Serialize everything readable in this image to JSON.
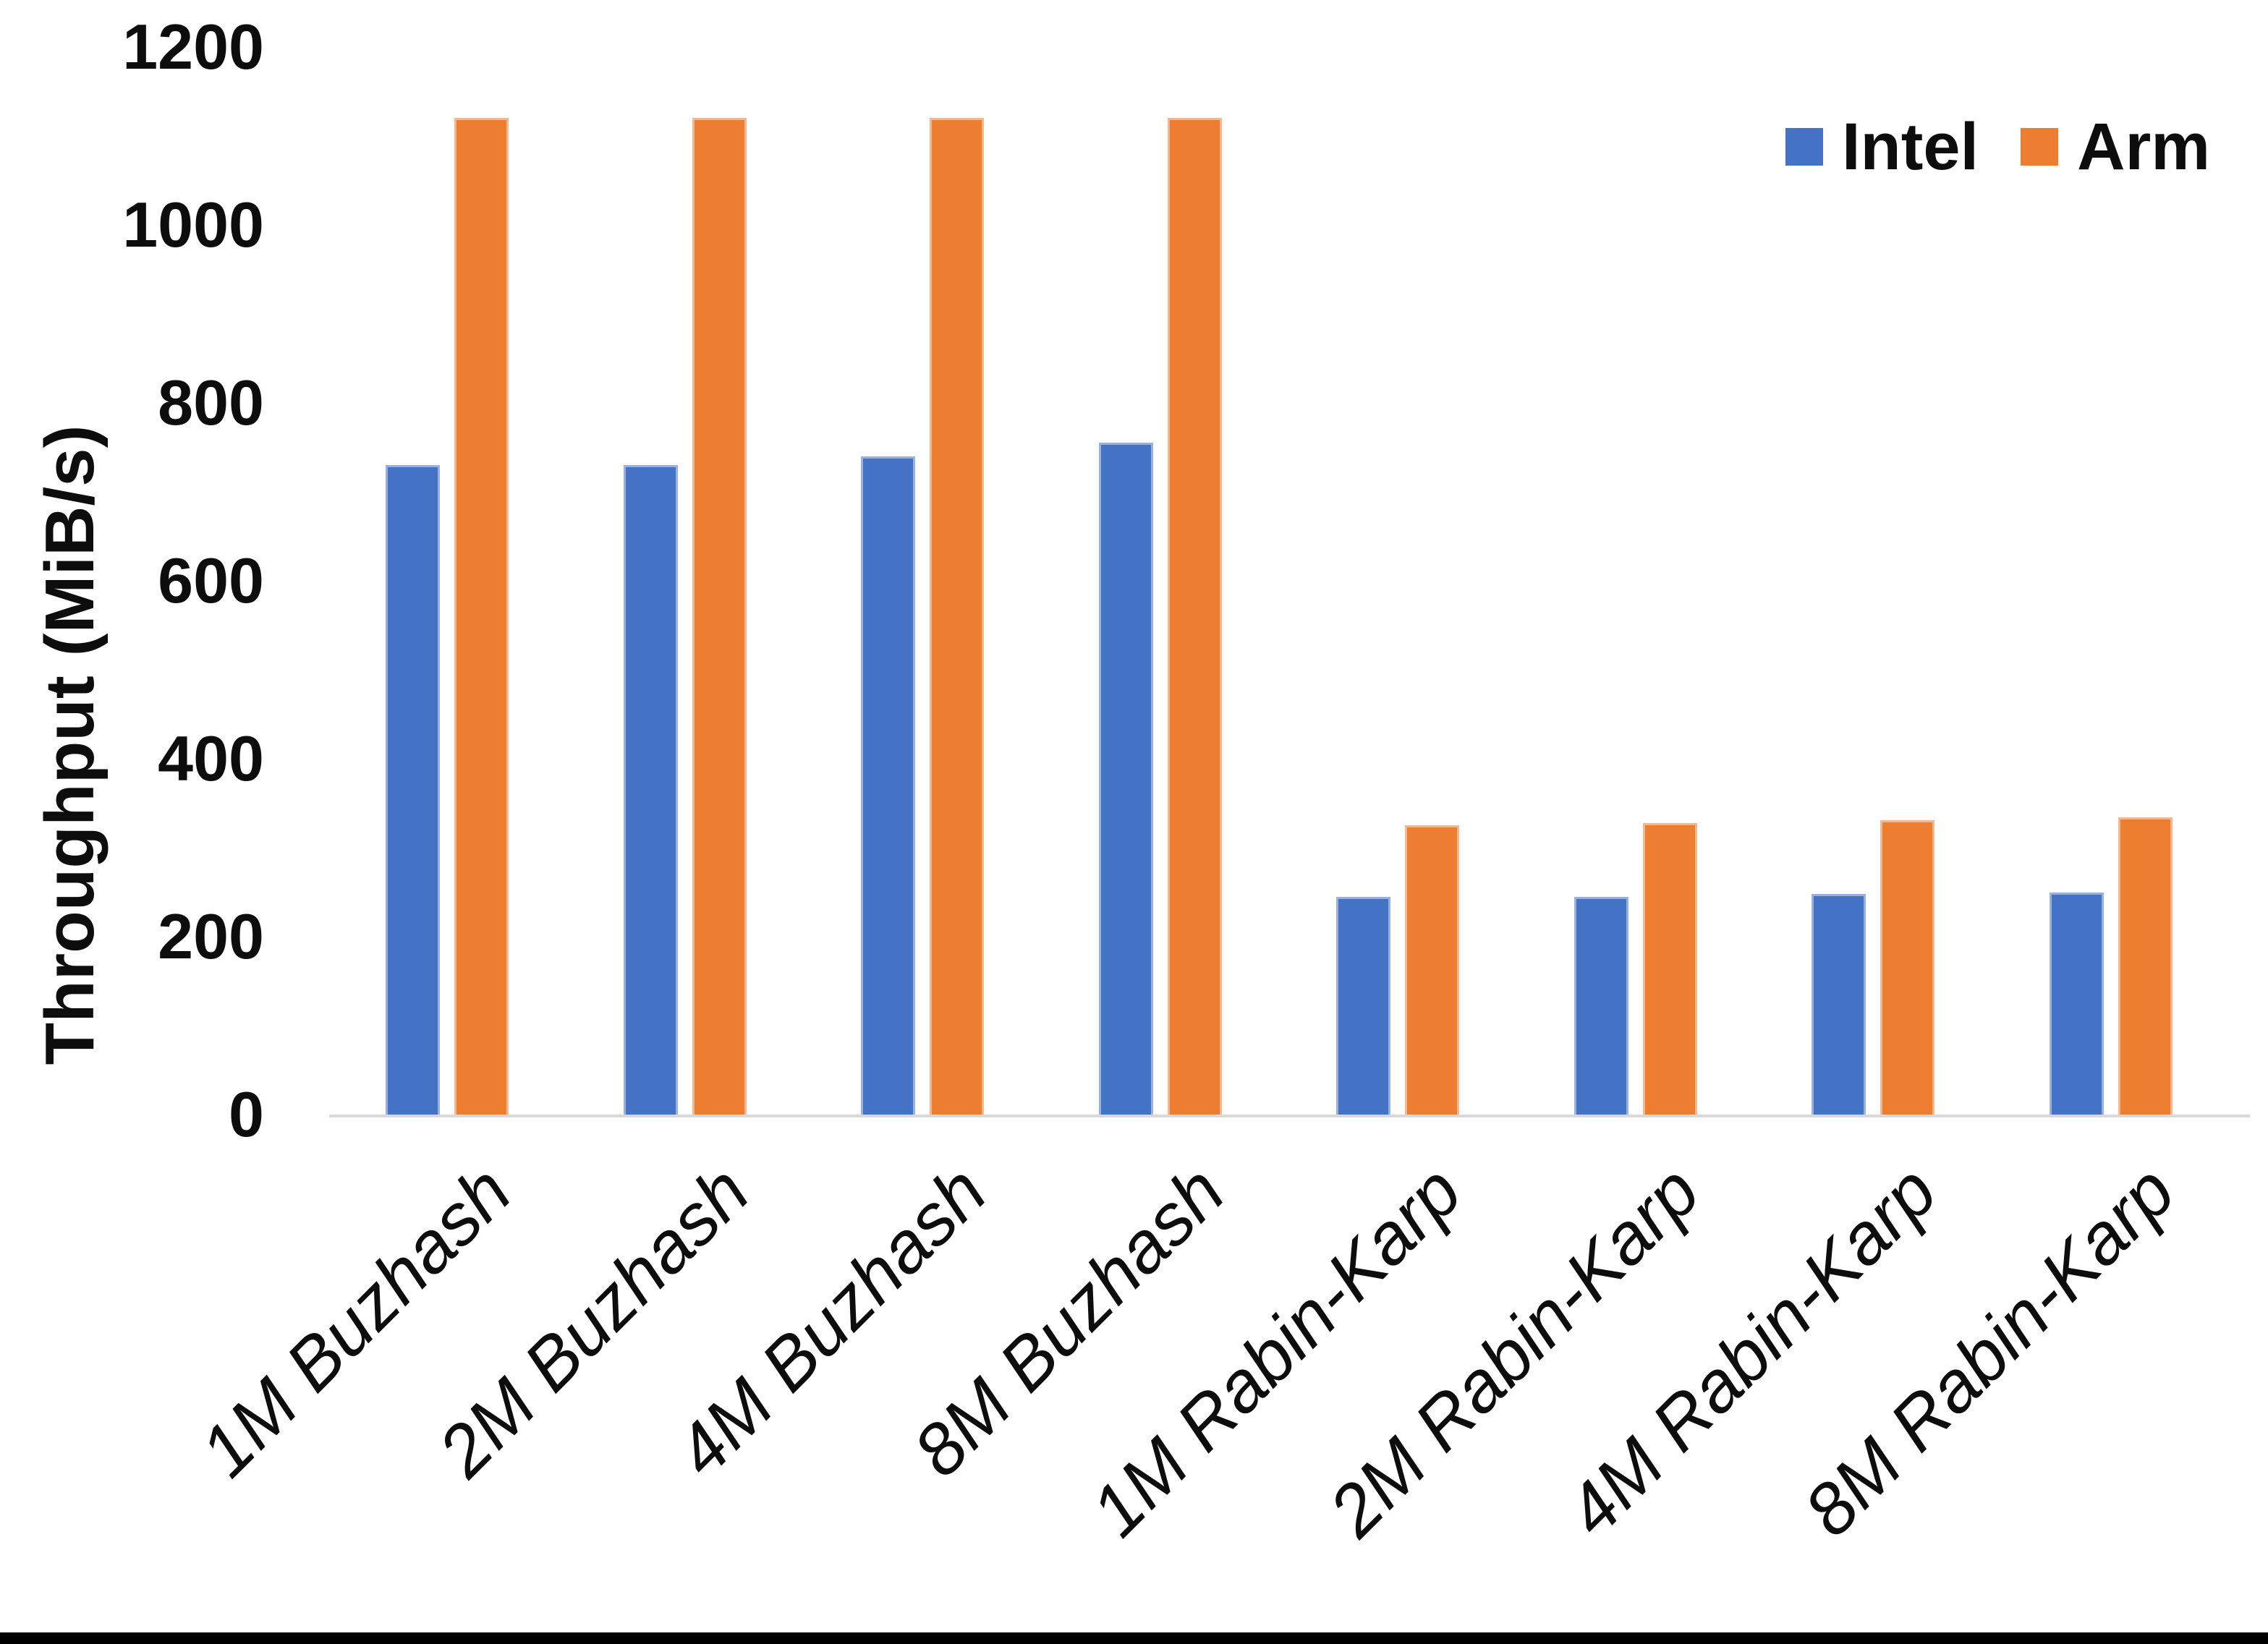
{
  "chart_data": {
    "type": "bar",
    "title": "",
    "categories": [
      "1M Buzhash",
      "2M Buzhash",
      "4M Buzhash",
      "8M Buzhash",
      "1M Rabin-Karp",
      "2M Rabin-Karp",
      "4M Rabin-Karp",
      "8M Rabin-Karp"
    ],
    "series": [
      {
        "name": "Intel",
        "color": "#4472C4",
        "values": [
          730,
          730,
          740,
          755,
          245,
          245,
          248,
          250
        ]
      },
      {
        "name": "Arm",
        "color": "#ED7D31",
        "values": [
          1120,
          1120,
          1120,
          1120,
          325,
          328,
          331,
          334
        ]
      }
    ],
    "ylabel": "Throughput (MiB/s)",
    "ylim": [
      0,
      1200
    ],
    "yticks": [
      0,
      200,
      400,
      600,
      800,
      1000,
      1200
    ],
    "legend_position": "top-right",
    "grid": false
  }
}
